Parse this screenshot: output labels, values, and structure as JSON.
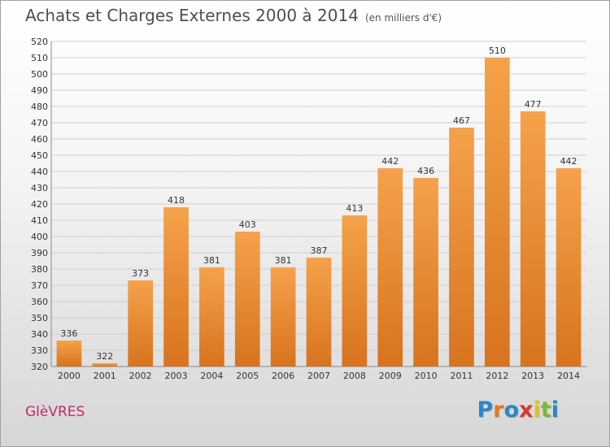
{
  "header": {
    "title": "Achats et Charges Externes 2000 à 2014",
    "unit": "(en milliers d'€)"
  },
  "footer": {
    "commune": "GlèVRES",
    "brand": "Proxiti",
    "brand_colors": [
      "#2d86c6",
      "#e07a1d",
      "#2d86c6",
      "#d9372d",
      "#e0c21d",
      "#7cb83a",
      "#2d86c6"
    ]
  },
  "colors": {
    "bar_top": "#f5a24b",
    "bar_bottom": "#d8731e",
    "grid": "#d0d0d0",
    "axis_text": "#333333",
    "commune": "#c2286b"
  },
  "chart_data": {
    "type": "bar",
    "title": "Achats et Charges Externes 2000 à 2014",
    "subtitle": "(en milliers d'€)",
    "categories": [
      "2000",
      "2001",
      "2002",
      "2003",
      "2004",
      "2005",
      "2006",
      "2007",
      "2008",
      "2009",
      "2010",
      "2011",
      "2012",
      "2013",
      "2014"
    ],
    "values": [
      336,
      322,
      373,
      418,
      381,
      403,
      381,
      387,
      413,
      442,
      436,
      467,
      510,
      477,
      442
    ],
    "ylim": [
      320,
      520
    ],
    "ytick_step": 10,
    "grid": true,
    "legend": "none"
  }
}
